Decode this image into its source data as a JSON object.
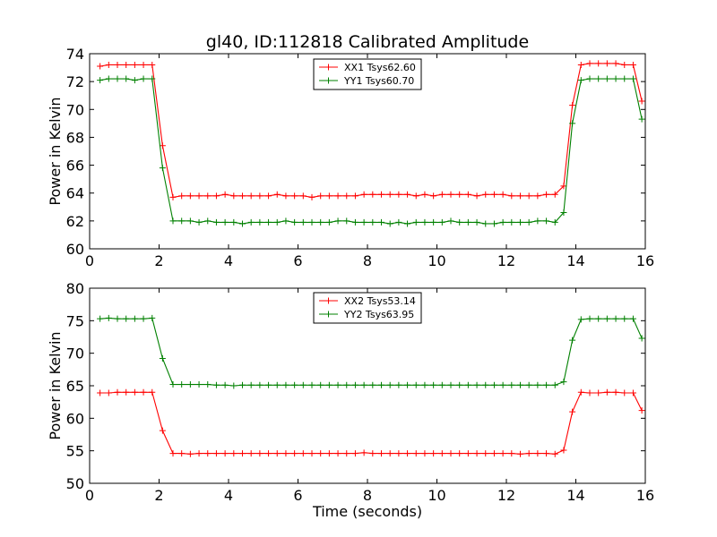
{
  "title": "gl40, ID:112818 Calibrated Amplitude",
  "colors": {
    "red": "#ff0000",
    "green": "#008000"
  },
  "chart_data": [
    {
      "type": "line",
      "title": "gl40, ID:112818 Calibrated Amplitude",
      "xlabel": "",
      "ylabel": "Power in Kelvin",
      "xlim": [
        0,
        16
      ],
      "ylim": [
        60,
        74
      ],
      "xticks": [
        0,
        2,
        4,
        6,
        8,
        10,
        12,
        14,
        16
      ],
      "yticks": [
        60,
        62,
        64,
        66,
        68,
        70,
        72,
        74
      ],
      "legend_position": "top-center",
      "grid": false,
      "x": [
        0.3,
        0.55,
        0.8,
        1.05,
        1.3,
        1.55,
        1.8,
        2.1,
        2.4,
        2.65,
        2.9,
        3.15,
        3.4,
        3.65,
        3.9,
        4.15,
        4.4,
        4.65,
        4.9,
        5.15,
        5.4,
        5.65,
        5.9,
        6.15,
        6.4,
        6.65,
        6.9,
        7.15,
        7.4,
        7.65,
        7.9,
        8.15,
        8.4,
        8.65,
        8.9,
        9.15,
        9.4,
        9.65,
        9.9,
        10.15,
        10.4,
        10.65,
        10.9,
        11.15,
        11.4,
        11.65,
        11.9,
        12.15,
        12.4,
        12.65,
        12.9,
        13.15,
        13.4,
        13.65,
        13.9,
        14.15,
        14.4,
        14.65,
        14.9,
        15.15,
        15.4,
        15.65,
        15.9
      ],
      "series": [
        {
          "name": "XX1 Tsys62.60",
          "color": "#ff0000",
          "values": [
            73.1,
            73.2,
            73.2,
            73.2,
            73.2,
            73.2,
            73.2,
            67.4,
            63.7,
            63.8,
            63.8,
            63.8,
            63.8,
            63.8,
            63.9,
            63.8,
            63.8,
            63.8,
            63.8,
            63.8,
            63.9,
            63.8,
            63.8,
            63.8,
            63.7,
            63.8,
            63.8,
            63.8,
            63.8,
            63.8,
            63.9,
            63.9,
            63.9,
            63.9,
            63.9,
            63.9,
            63.8,
            63.9,
            63.8,
            63.9,
            63.9,
            63.9,
            63.9,
            63.8,
            63.9,
            63.9,
            63.9,
            63.8,
            63.8,
            63.8,
            63.8,
            63.9,
            63.9,
            64.5,
            70.3,
            73.2,
            73.3,
            73.3,
            73.3,
            73.3,
            73.2,
            73.2,
            70.6
          ]
        },
        {
          "name": "YY1 Tsys60.70",
          "color": "#008000",
          "values": [
            72.1,
            72.2,
            72.2,
            72.2,
            72.1,
            72.2,
            72.2,
            65.8,
            62.0,
            62.0,
            62.0,
            61.9,
            62.0,
            61.9,
            61.9,
            61.9,
            61.8,
            61.9,
            61.9,
            61.9,
            61.9,
            62.0,
            61.9,
            61.9,
            61.9,
            61.9,
            61.9,
            62.0,
            62.0,
            61.9,
            61.9,
            61.9,
            61.9,
            61.8,
            61.9,
            61.8,
            61.9,
            61.9,
            61.9,
            61.9,
            62.0,
            61.9,
            61.9,
            61.9,
            61.8,
            61.8,
            61.9,
            61.9,
            61.9,
            61.9,
            62.0,
            62.0,
            61.9,
            62.6,
            69.0,
            72.1,
            72.2,
            72.2,
            72.2,
            72.2,
            72.2,
            72.2,
            69.3
          ]
        }
      ]
    },
    {
      "type": "line",
      "title": "",
      "xlabel": "Time (seconds)",
      "ylabel": "Power in Kelvin",
      "xlim": [
        0,
        16
      ],
      "ylim": [
        50,
        80
      ],
      "xticks": [
        0,
        2,
        4,
        6,
        8,
        10,
        12,
        14,
        16
      ],
      "yticks": [
        50,
        55,
        60,
        65,
        70,
        75,
        80
      ],
      "legend_position": "top-center",
      "grid": false,
      "x": [
        0.3,
        0.55,
        0.8,
        1.05,
        1.3,
        1.55,
        1.8,
        2.1,
        2.4,
        2.65,
        2.9,
        3.15,
        3.4,
        3.65,
        3.9,
        4.15,
        4.4,
        4.65,
        4.9,
        5.15,
        5.4,
        5.65,
        5.9,
        6.15,
        6.4,
        6.65,
        6.9,
        7.15,
        7.4,
        7.65,
        7.9,
        8.15,
        8.4,
        8.65,
        8.9,
        9.15,
        9.4,
        9.65,
        9.9,
        10.15,
        10.4,
        10.65,
        10.9,
        11.15,
        11.4,
        11.65,
        11.9,
        12.15,
        12.4,
        12.65,
        12.9,
        13.15,
        13.4,
        13.65,
        13.9,
        14.15,
        14.4,
        14.65,
        14.9,
        15.15,
        15.4,
        15.65,
        15.9
      ],
      "series": [
        {
          "name": "XX2 Tsys53.14",
          "color": "#ff0000",
          "values": [
            63.9,
            63.9,
            64.0,
            64.0,
            64.0,
            64.0,
            64.0,
            58.1,
            54.6,
            54.6,
            54.5,
            54.6,
            54.6,
            54.6,
            54.6,
            54.6,
            54.6,
            54.6,
            54.6,
            54.6,
            54.6,
            54.6,
            54.6,
            54.6,
            54.6,
            54.6,
            54.6,
            54.6,
            54.6,
            54.6,
            54.7,
            54.6,
            54.6,
            54.6,
            54.6,
            54.6,
            54.6,
            54.6,
            54.6,
            54.6,
            54.6,
            54.6,
            54.6,
            54.6,
            54.6,
            54.6,
            54.6,
            54.6,
            54.5,
            54.6,
            54.6,
            54.6,
            54.5,
            55.1,
            61.0,
            64.0,
            63.9,
            63.9,
            64.0,
            64.0,
            63.9,
            63.9,
            61.2
          ]
        },
        {
          "name": "YY2 Tsys63.95",
          "color": "#008000",
          "values": [
            75.3,
            75.4,
            75.3,
            75.3,
            75.3,
            75.3,
            75.4,
            69.2,
            65.2,
            65.2,
            65.2,
            65.2,
            65.2,
            65.1,
            65.1,
            65.0,
            65.1,
            65.1,
            65.1,
            65.1,
            65.1,
            65.1,
            65.1,
            65.1,
            65.1,
            65.1,
            65.1,
            65.1,
            65.1,
            65.1,
            65.1,
            65.1,
            65.1,
            65.1,
            65.1,
            65.1,
            65.1,
            65.1,
            65.1,
            65.1,
            65.1,
            65.1,
            65.1,
            65.1,
            65.1,
            65.1,
            65.1,
            65.1,
            65.1,
            65.1,
            65.1,
            65.1,
            65.1,
            65.6,
            72.0,
            75.2,
            75.3,
            75.3,
            75.3,
            75.3,
            75.3,
            75.3,
            72.3
          ]
        }
      ]
    }
  ]
}
